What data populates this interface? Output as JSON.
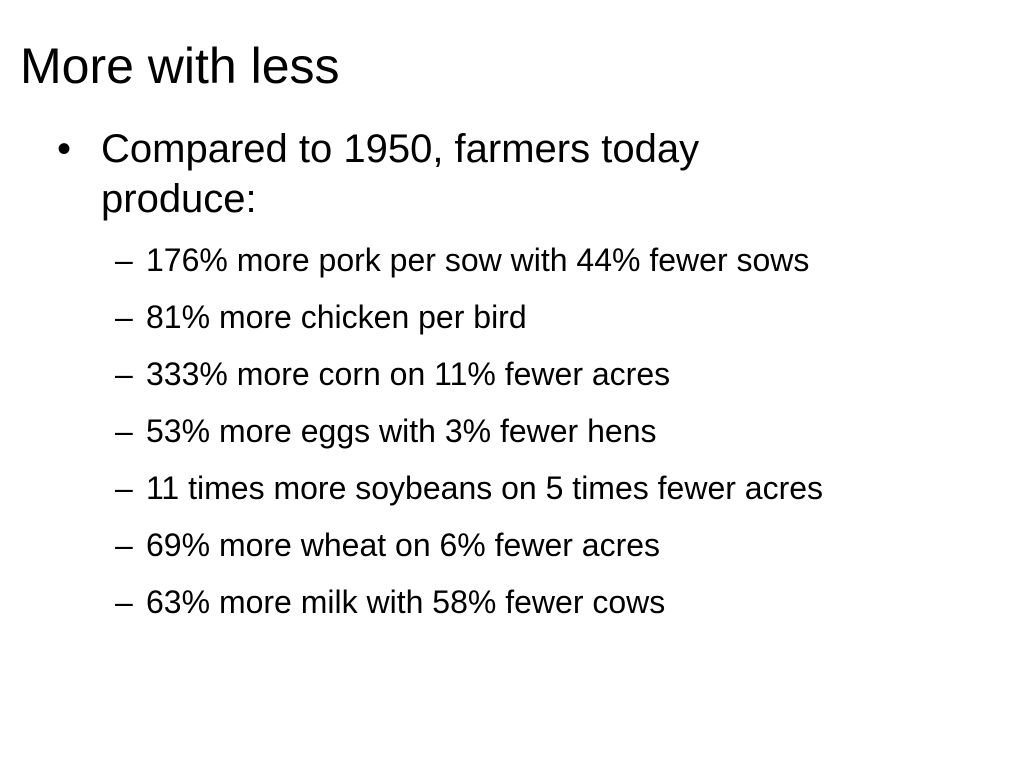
{
  "slide": {
    "title": "More with less",
    "bullet": {
      "marker": "•",
      "text": "Compared to 1950, farmers today produce:"
    },
    "sub_marker": "–",
    "sub_items": [
      "176% more pork per sow with 44% fewer sows",
      "81% more chicken per bird",
      "333% more corn on 11% fewer acres",
      "53% more eggs with 3% fewer hens",
      "11 times more soybeans on 5 times fewer acres",
      "69% more wheat on 6% fewer acres",
      "63% more milk with 58% fewer cows"
    ]
  }
}
